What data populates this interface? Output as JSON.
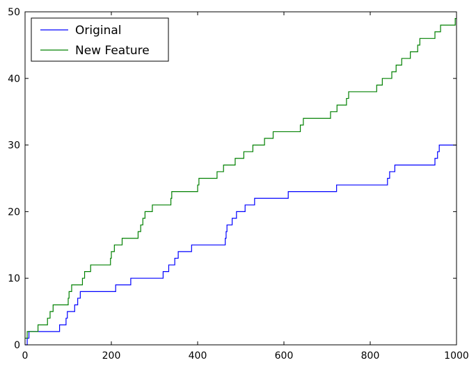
{
  "chart_data": {
    "type": "line",
    "step": true,
    "title": "",
    "xlabel": "",
    "ylabel": "",
    "xlim": [
      0,
      1000
    ],
    "ylim": [
      0,
      50
    ],
    "xticks": [
      0,
      200,
      400,
      600,
      800,
      1000
    ],
    "yticks": [
      0,
      10,
      20,
      30,
      40,
      50
    ],
    "grid": false,
    "legend_position": "top-left",
    "series": [
      {
        "name": "Original",
        "color": "#0000ff",
        "points": [
          [
            0,
            0
          ],
          [
            5,
            1
          ],
          [
            9,
            2
          ],
          [
            80,
            3
          ],
          [
            95,
            4
          ],
          [
            98,
            5
          ],
          [
            115,
            6
          ],
          [
            122,
            7
          ],
          [
            128,
            8
          ],
          [
            210,
            9
          ],
          [
            245,
            10
          ],
          [
            320,
            11
          ],
          [
            333,
            12
          ],
          [
            347,
            13
          ],
          [
            355,
            14
          ],
          [
            386,
            15
          ],
          [
            464,
            16
          ],
          [
            466,
            17
          ],
          [
            468,
            18
          ],
          [
            480,
            19
          ],
          [
            490,
            20
          ],
          [
            510,
            21
          ],
          [
            532,
            22
          ],
          [
            610,
            23
          ],
          [
            722,
            24
          ],
          [
            840,
            25
          ],
          [
            845,
            26
          ],
          [
            857,
            27
          ],
          [
            950,
            28
          ],
          [
            956,
            29
          ],
          [
            960,
            30
          ],
          [
            1000,
            30
          ]
        ]
      },
      {
        "name": "New Feature",
        "color": "#008000",
        "points": [
          [
            0,
            1
          ],
          [
            5,
            2
          ],
          [
            30,
            3
          ],
          [
            52,
            4
          ],
          [
            58,
            5
          ],
          [
            65,
            6
          ],
          [
            100,
            7
          ],
          [
            102,
            8
          ],
          [
            108,
            9
          ],
          [
            133,
            10
          ],
          [
            138,
            11
          ],
          [
            152,
            12
          ],
          [
            198,
            13
          ],
          [
            200,
            14
          ],
          [
            207,
            15
          ],
          [
            225,
            16
          ],
          [
            262,
            17
          ],
          [
            268,
            18
          ],
          [
            273,
            19
          ],
          [
            278,
            20
          ],
          [
            295,
            21
          ],
          [
            338,
            22
          ],
          [
            340,
            23
          ],
          [
            400,
            24
          ],
          [
            403,
            25
          ],
          [
            445,
            26
          ],
          [
            460,
            27
          ],
          [
            487,
            28
          ],
          [
            507,
            29
          ],
          [
            528,
            30
          ],
          [
            555,
            31
          ],
          [
            575,
            32
          ],
          [
            638,
            33
          ],
          [
            645,
            34
          ],
          [
            708,
            35
          ],
          [
            723,
            36
          ],
          [
            745,
            37
          ],
          [
            750,
            38
          ],
          [
            815,
            39
          ],
          [
            828,
            40
          ],
          [
            850,
            41
          ],
          [
            860,
            42
          ],
          [
            873,
            43
          ],
          [
            893,
            44
          ],
          [
            910,
            45
          ],
          [
            915,
            46
          ],
          [
            950,
            47
          ],
          [
            963,
            48
          ],
          [
            997,
            49
          ],
          [
            1000,
            49
          ]
        ]
      }
    ]
  }
}
